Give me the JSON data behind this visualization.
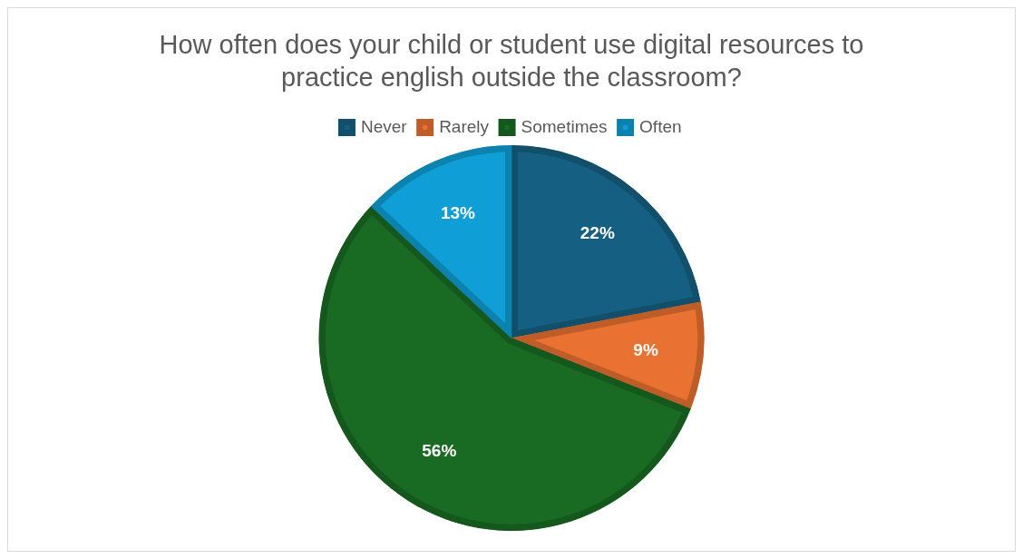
{
  "chart_data": {
    "type": "pie",
    "title": "How often does your child or student use digital resources to practice english outside the classroom?",
    "categories": [
      "Never",
      "Rarely",
      "Sometimes",
      "Often"
    ],
    "values": [
      22,
      9,
      56,
      13
    ],
    "colors": [
      "#156082",
      "#e97132",
      "#196b24",
      "#0f9ed5"
    ],
    "value_labels": [
      "22%",
      "9%",
      "56%",
      "13%"
    ],
    "legend": "top"
  }
}
